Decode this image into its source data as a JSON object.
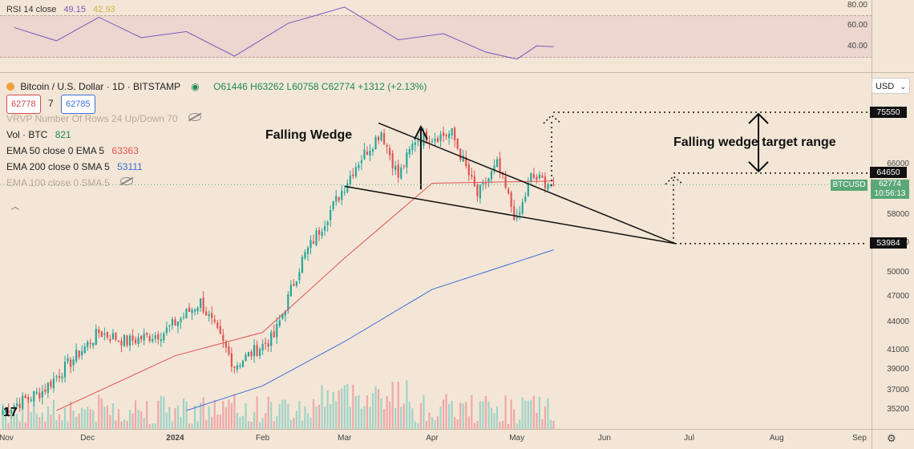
{
  "rsi": {
    "label": "RSI 14 close",
    "value": "49.15",
    "value2": "42.93",
    "axis_ticks": [
      "80.00",
      "60.00",
      "40.00"
    ]
  },
  "legend": {
    "title": "Bitcoin / U.S. Dollar · 1D · BITSTAMP",
    "ohlc": "O61446 H63262 L60758 C62774 +1312 (+2.13%)",
    "bid": "62778",
    "spread": "7",
    "ask": "62785",
    "vrvp": "VRVP Number Of Rows 24 Up/Down 70",
    "vol_label": "Vol · BTC",
    "vol_value": "821",
    "ema50_label": "EMA 50 close 0 EMA 5",
    "ema50_value": "63363",
    "sma200_label": "EMA 200 close 0 SMA 5",
    "sma200_value": "53111",
    "ema100_label": "EMA 100 close 0 SMA 5"
  },
  "currency_select": "USD",
  "price_axis": [
    "66000",
    "62000",
    "58000",
    "54000",
    "50000",
    "47000",
    "44000",
    "41000",
    "39000",
    "37000",
    "35200"
  ],
  "price_labels": {
    "top": "75550",
    "mid": "64650",
    "bottom": "53984",
    "symbol": "BTCUSD",
    "current": "62774",
    "countdown": "10:56:13"
  },
  "time_axis": [
    "Nov",
    "Dec",
    "2024",
    "Feb",
    "Mar",
    "Apr",
    "May",
    "Jun",
    "Jul",
    "Aug",
    "Sep"
  ],
  "annotations": {
    "pattern": "Falling Wedge",
    "target": "Falling wedge target range"
  },
  "logo": "17",
  "colors": {
    "bull": "#26a69a",
    "bear": "#e05252",
    "ema50": "#e05252",
    "sma200": "#3c6fd8",
    "rsi": "#7e57c2"
  },
  "chart_data": {
    "type": "candlestick",
    "title": "Bitcoin / U.S. Dollar · 1D · BITSTAMP",
    "x_range": [
      "2023-10-31",
      "2024-09-01"
    ],
    "y_range": [
      34000,
      80000
    ],
    "log_scale": true,
    "anchors": [
      {
        "date": "2023-11-01",
        "close": 35200
      },
      {
        "date": "2023-11-15",
        "close": 37000
      },
      {
        "date": "2023-12-05",
        "close": 43000
      },
      {
        "date": "2023-12-15",
        "close": 42000
      },
      {
        "date": "2023-12-28",
        "close": 43000
      },
      {
        "date": "2024-01-10",
        "close": 46500
      },
      {
        "date": "2024-01-22",
        "close": 39500
      },
      {
        "date": "2024-02-05",
        "close": 42500
      },
      {
        "date": "2024-02-15",
        "close": 51800
      },
      {
        "date": "2024-02-28",
        "close": 61000
      },
      {
        "date": "2024-03-05",
        "close": 66000
      },
      {
        "date": "2024-03-14",
        "close": 72000
      },
      {
        "date": "2024-03-20",
        "close": 64000
      },
      {
        "date": "2024-03-26",
        "close": 70500
      },
      {
        "date": "2024-04-08",
        "close": 71500
      },
      {
        "date": "2024-04-17",
        "close": 61000
      },
      {
        "date": "2024-04-24",
        "close": 66000
      },
      {
        "date": "2024-05-01",
        "close": 57000
      },
      {
        "date": "2024-05-06",
        "close": 64000
      },
      {
        "date": "2024-05-14",
        "close": 62774
      }
    ],
    "ema50": [
      {
        "date": "2023-11-20",
        "value": 35200
      },
      {
        "date": "2024-01-01",
        "value": 40500
      },
      {
        "date": "2024-02-01",
        "value": 43000
      },
      {
        "date": "2024-03-01",
        "value": 52000
      },
      {
        "date": "2024-04-01",
        "value": 63000
      },
      {
        "date": "2024-05-14",
        "value": 63363
      }
    ],
    "sma200": [
      {
        "date": "2024-01-05",
        "value": 35200
      },
      {
        "date": "2024-02-01",
        "value": 37500
      },
      {
        "date": "2024-03-01",
        "value": 42000
      },
      {
        "date": "2024-04-01",
        "value": 48000
      },
      {
        "date": "2024-05-14",
        "value": 53111
      }
    ],
    "rsi": [
      {
        "date": "2023-11-05",
        "value": 68
      },
      {
        "date": "2023-11-20",
        "value": 55
      },
      {
        "date": "2023-12-05",
        "value": 78
      },
      {
        "date": "2023-12-20",
        "value": 58
      },
      {
        "date": "2024-01-05",
        "value": 64
      },
      {
        "date": "2024-01-22",
        "value": 40
      },
      {
        "date": "2024-02-10",
        "value": 72
      },
      {
        "date": "2024-03-01",
        "value": 88
      },
      {
        "date": "2024-03-20",
        "value": 56
      },
      {
        "date": "2024-04-05",
        "value": 62
      },
      {
        "date": "2024-04-20",
        "value": 44
      },
      {
        "date": "2024-05-01",
        "value": 37
      },
      {
        "date": "2024-05-08",
        "value": 50
      },
      {
        "date": "2024-05-14",
        "value": 49.15
      }
    ],
    "wedge": {
      "upper": [
        {
          "date": "2024-03-13",
          "price": 73500
        },
        {
          "date": "2024-06-26",
          "price": 54000
        }
      ],
      "lower": [
        {
          "date": "2024-03-01",
          "price": 62500
        },
        {
          "date": "2024-06-26",
          "price": 54000
        }
      ],
      "apex_price": 53984
    },
    "target_range": {
      "low": 64650,
      "high": 75550
    }
  }
}
